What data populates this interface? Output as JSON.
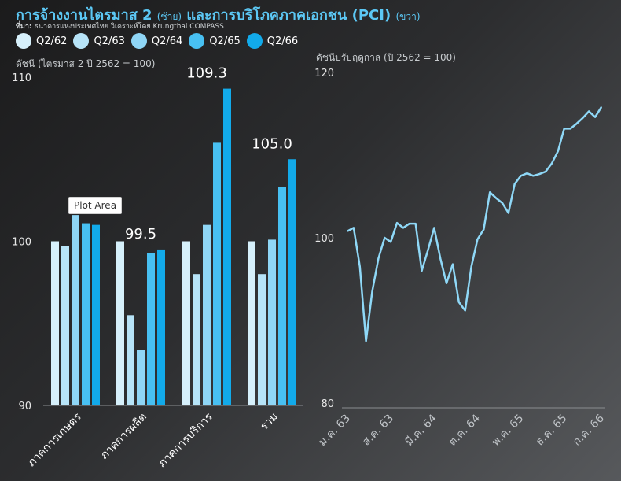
{
  "title": {
    "main_left": "การจ้างงานไตรมาส 2",
    "left_tag": "(ซ้าย)",
    "main_right": "และการบริโภคภาคเอกชน (PCI)",
    "right_tag": "(ขวา)"
  },
  "source": {
    "prefix": "ที่มา:",
    "text": "ธนาคารแห่งประเทศไทย วิเคราะห์โดย Krungthai COMPASS"
  },
  "tooltip": "Plot Area",
  "chart_data": [
    {
      "type": "bar",
      "ylabel": "ดัชนี (ไตรมาส 2 ปี 2562 = 100)",
      "ylim": [
        90,
        110
      ],
      "yticks": [
        "90",
        "100",
        "110"
      ],
      "categories": [
        "ภาคการเกษตร",
        "ภาคการผลิต",
        "ภาคการบริการ",
        "รวม"
      ],
      "series": [
        {
          "name": "Q2/62",
          "color": "#d6f0fb",
          "values": [
            100.0,
            100.0,
            100.0,
            100.0
          ]
        },
        {
          "name": "Q2/63",
          "color": "#b7e4f8",
          "values": [
            99.7,
            95.5,
            98.0,
            98.0
          ]
        },
        {
          "name": "Q2/64",
          "color": "#8fd6f6",
          "values": [
            101.6,
            93.4,
            101.0,
            100.1
          ]
        },
        {
          "name": "Q2/65",
          "color": "#48c0f2",
          "values": [
            101.1,
            99.3,
            106.0,
            103.3
          ]
        },
        {
          "name": "Q2/66",
          "color": "#12aaea",
          "values": [
            101.0,
            99.5,
            109.3,
            105.0
          ]
        }
      ],
      "data_labels": [
        "",
        "99.5",
        "109.3",
        "105.0"
      ]
    },
    {
      "type": "line",
      "ylabel": "ดัชนีปรับฤดูกาล (ปี 2562 = 100)",
      "ylim": [
        80,
        120
      ],
      "yticks": [
        "80",
        "100",
        "120"
      ],
      "x_tick_labels": [
        "ม.ค. 63",
        "ส.ค. 63",
        "มี.ค. 64",
        "ต.ค. 64",
        "พ.ค. 65",
        "ธ.ค. 65",
        "ก.ค. 66"
      ],
      "color": "#8fd8f7",
      "values": [
        100.8,
        101.2,
        96.5,
        87.5,
        93.5,
        97.5,
        100.0,
        99.5,
        101.8,
        101.2,
        101.7,
        101.7,
        96.0,
        98.5,
        101.2,
        97.5,
        94.5,
        96.8,
        92.2,
        91.2,
        96.5,
        99.8,
        101.0,
        105.5,
        104.8,
        104.2,
        103.0,
        106.5,
        107.5,
        107.8,
        107.5,
        107.7,
        108.0,
        109.0,
        110.5,
        113.2,
        113.2,
        113.8,
        114.5,
        115.3,
        114.6,
        115.8
      ]
    }
  ]
}
